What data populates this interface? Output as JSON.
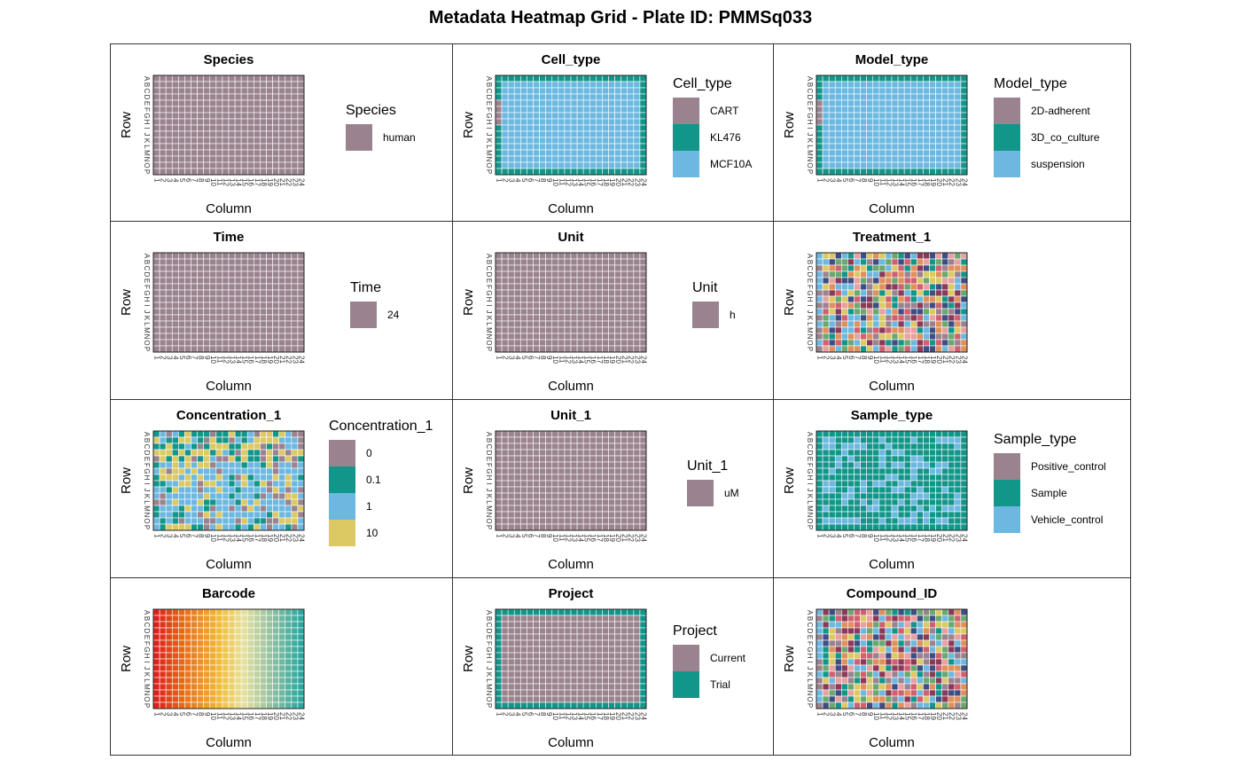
{
  "title": "Metadata Heatmap Grid - Plate ID: PMMSq033",
  "colors": {
    "mauve": "#9A838E",
    "teal": "#13968A",
    "sky": "#6DB8E0",
    "sand": "#DCC964",
    "red": "#D06070",
    "navy": "#3E4E84",
    "orange": "#E0905A",
    "rose": "#E8A0A0",
    "green": "#6AA870",
    "plum": "#8A3A58"
  },
  "chart_data": [
    {
      "type": "heatmap",
      "title": "Species",
      "xlabel": "Column",
      "ylabel": "Row",
      "pattern": "uniform",
      "legend_title": "Species",
      "levels": [
        "human"
      ],
      "level_colors": [
        "#9A838E"
      ]
    },
    {
      "type": "heatmap",
      "title": "Cell_type",
      "xlabel": "Column",
      "ylabel": "Row",
      "pattern": "frame3",
      "legend_title": "Cell_type",
      "levels": [
        "CART",
        "KL476",
        "MCF10A"
      ],
      "level_colors": [
        "#9A838E",
        "#13968A",
        "#6DB8E0"
      ]
    },
    {
      "type": "heatmap",
      "title": "Model_type",
      "xlabel": "Column",
      "ylabel": "Row",
      "pattern": "frame3",
      "legend_title": "Model_type",
      "levels": [
        "2D-adherent",
        "3D_co_culture",
        "suspension"
      ],
      "level_colors": [
        "#9A838E",
        "#13968A",
        "#6DB8E0"
      ]
    },
    {
      "type": "heatmap",
      "title": "Time",
      "xlabel": "Column",
      "ylabel": "Row",
      "pattern": "uniform",
      "legend_title": "Time",
      "levels": [
        "24"
      ],
      "level_colors": [
        "#9A838E"
      ]
    },
    {
      "type": "heatmap",
      "title": "Unit",
      "xlabel": "Column",
      "ylabel": "Row",
      "pattern": "uniform",
      "legend_title": "Unit",
      "levels": [
        "h"
      ],
      "level_colors": [
        "#9A838E"
      ]
    },
    {
      "type": "heatmap",
      "title": "Treatment_1",
      "xlabel": "Column",
      "ylabel": "Row",
      "pattern": "random",
      "legend_title": "",
      "levels": [],
      "level_colors": []
    },
    {
      "type": "heatmap",
      "title": "Concentration_1",
      "xlabel": "Column",
      "ylabel": "Row",
      "pattern": "conc",
      "legend_title": "Concentration_1",
      "levels": [
        "0",
        "0.1",
        "1",
        "10"
      ],
      "level_colors": [
        "#9A838E",
        "#13968A",
        "#6DB8E0",
        "#DCC964"
      ]
    },
    {
      "type": "heatmap",
      "title": "Unit_1",
      "xlabel": "Column",
      "ylabel": "Row",
      "pattern": "uniform",
      "legend_title": "Unit_1",
      "levels": [
        "uM"
      ],
      "level_colors": [
        "#9A838E"
      ]
    },
    {
      "type": "heatmap",
      "title": "Sample_type",
      "xlabel": "Column",
      "ylabel": "Row",
      "pattern": "sample",
      "legend_title": "Sample_type",
      "levels": [
        "Positive_control",
        "Sample",
        "Vehicle_control"
      ],
      "level_colors": [
        "#9A838E",
        "#13968A",
        "#6DB8E0"
      ]
    },
    {
      "type": "heatmap",
      "title": "Barcode",
      "xlabel": "Column",
      "ylabel": "Row",
      "pattern": "gradient",
      "legend_title": "",
      "levels": [],
      "level_colors": []
    },
    {
      "type": "heatmap",
      "title": "Project",
      "xlabel": "Column",
      "ylabel": "Row",
      "pattern": "frame2",
      "legend_title": "Project",
      "levels": [
        "Current",
        "Trial"
      ],
      "level_colors": [
        "#9A838E",
        "#13968A"
      ]
    },
    {
      "type": "heatmap",
      "title": "Compound_ID",
      "xlabel": "Column",
      "ylabel": "Row",
      "pattern": "random",
      "legend_title": "",
      "levels": [],
      "level_colors": []
    }
  ],
  "row_labels": [
    "A",
    "B",
    "C",
    "D",
    "E",
    "F",
    "G",
    "H",
    "I",
    "J",
    "K",
    "L",
    "M",
    "N",
    "O",
    "P"
  ],
  "column_labels": [
    "1",
    "2",
    "3",
    "4",
    "5",
    "6",
    "7",
    "8",
    "9",
    "10",
    "11",
    "12",
    "13",
    "14",
    "15",
    "16",
    "17",
    "18",
    "19",
    "20",
    "21",
    "22",
    "23",
    "24"
  ]
}
